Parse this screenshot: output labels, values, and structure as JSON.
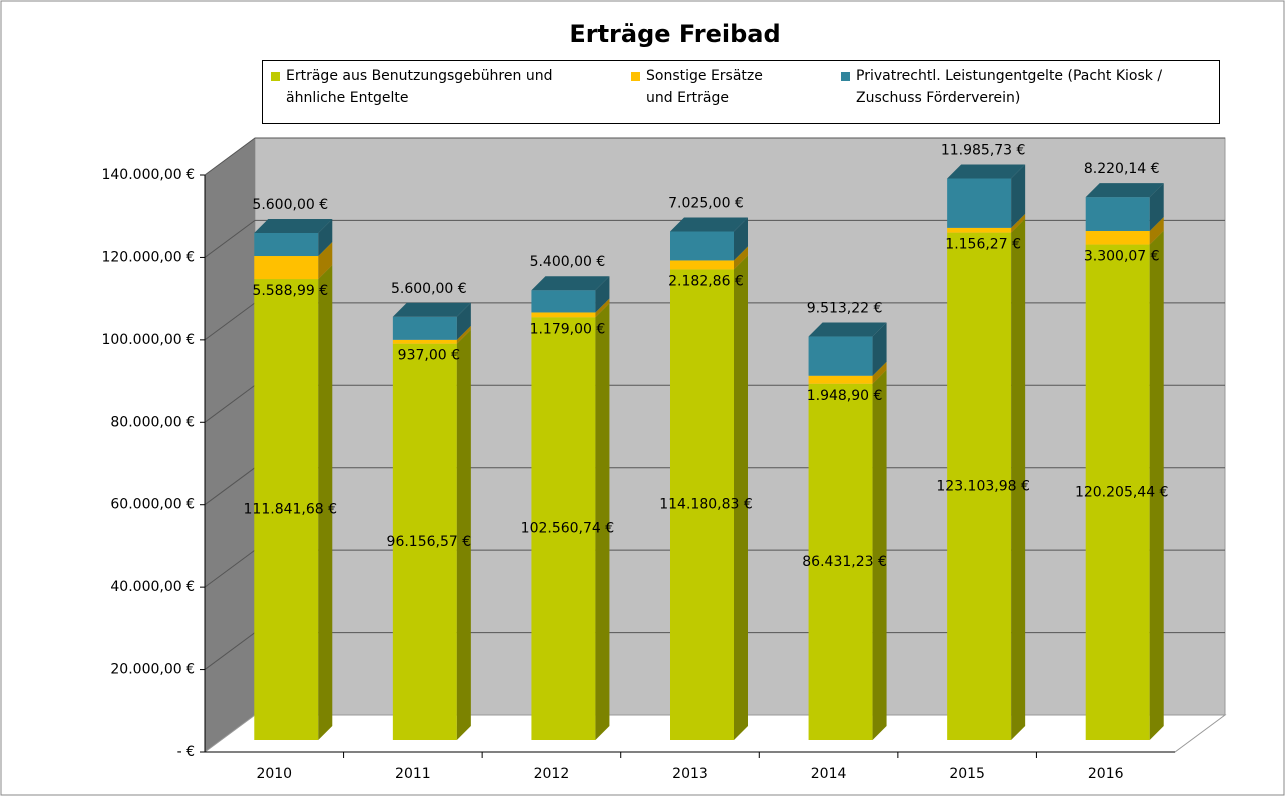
{
  "chart_data": {
    "type": "bar3d_stacked",
    "title": "Erträge Freibad",
    "categories": [
      "2010",
      "2011",
      "2012",
      "2013",
      "2014",
      "2015",
      "2016"
    ],
    "series": [
      {
        "name": "Erträge aus Benutzungsgebühren und ähnliche Entgelte",
        "color": "#bfca00",
        "values": [
          111841.68,
          96156.57,
          102560.74,
          114180.83,
          86431.23,
          123103.98,
          120205.44
        ],
        "value_labels": [
          "111.841,68 €",
          "96.156,57 €",
          "102.560,74 €",
          "114.180,83 €",
          "86.431,23 €",
          "123.103,98 €",
          "120.205,44 €"
        ]
      },
      {
        "name": "Sonstige Ersätze und Erträge",
        "color": "#ffc000",
        "values": [
          5588.99,
          937.0,
          1179.0,
          2182.86,
          1948.9,
          1156.27,
          3300.07
        ],
        "value_labels": [
          "5.588,99 €",
          "937,00 €",
          "1.179,00 €",
          "2.182,86 €",
          "1.948,90 €",
          "1.156,27 €",
          "3.300,07 €"
        ]
      },
      {
        "name": "Privatrechtl. Leistungentgelte (Pacht Kiosk / Zuschuss Förderverein)",
        "color": "#31859c",
        "values": [
          5600.0,
          5600.0,
          5400.0,
          7025.0,
          9513.22,
          11985.73,
          8220.14
        ],
        "value_labels": [
          "5.600,00 €",
          "5.600,00 €",
          "5.400,00 €",
          "7.025,00 €",
          "9.513,22 €",
          "11.985,73 €",
          "8.220,14 €"
        ]
      }
    ],
    "ylim": [
      0,
      140000
    ],
    "yticks": [
      {
        "value": 0,
        "label": "-  €"
      },
      {
        "value": 20000,
        "label": "20.000,00 €"
      },
      {
        "value": 40000,
        "label": "40.000,00 €"
      },
      {
        "value": 60000,
        "label": "60.000,00 €"
      },
      {
        "value": 80000,
        "label": "80.000,00 €"
      },
      {
        "value": 100000,
        "label": "100.000,00 €"
      },
      {
        "value": 120000,
        "label": "120.000,00 €"
      },
      {
        "value": 140000,
        "label": "140.000,00 €"
      }
    ],
    "grid": true
  }
}
